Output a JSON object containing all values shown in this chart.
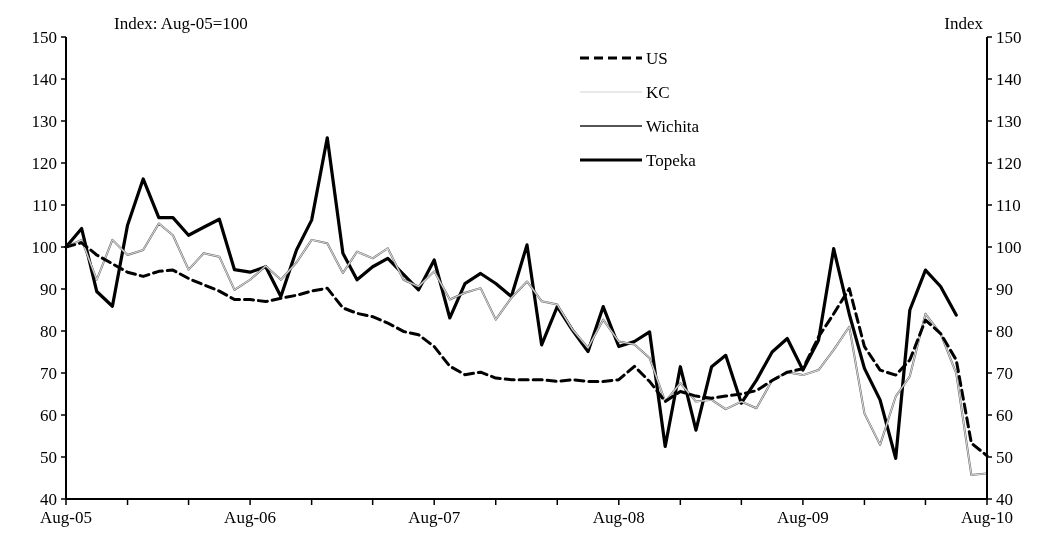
{
  "chart_data": {
    "type": "line",
    "ylabel": "Index: Aug-05=100",
    "y2label": "Index",
    "x": [
      "2005-08",
      "2005-09",
      "2005-10",
      "2005-11",
      "2005-12",
      "2006-01",
      "2006-02",
      "2006-03",
      "2006-04",
      "2006-05",
      "2006-06",
      "2006-07",
      "2006-08",
      "2006-09",
      "2006-10",
      "2006-11",
      "2006-12",
      "2007-01",
      "2007-02",
      "2007-03",
      "2007-04",
      "2007-05",
      "2007-06",
      "2007-07",
      "2007-08",
      "2007-09",
      "2007-10",
      "2007-11",
      "2007-12",
      "2008-01",
      "2008-02",
      "2008-03",
      "2008-04",
      "2008-05",
      "2008-06",
      "2008-07",
      "2008-08",
      "2008-09",
      "2008-10",
      "2008-11",
      "2008-12",
      "2009-01",
      "2009-02",
      "2009-03",
      "2009-04",
      "2009-05",
      "2009-06",
      "2009-07",
      "2009-08",
      "2009-09",
      "2009-10",
      "2009-11",
      "2009-12",
      "2010-01",
      "2010-02",
      "2010-03",
      "2010-04",
      "2010-05",
      "2010-06",
      "2010-07",
      "2010-08"
    ],
    "series": [
      {
        "name": "US",
        "color": "#000000",
        "line_style": "dashed",
        "values": [
          100,
          101,
          98.1,
          96,
          94,
          93,
          94.2,
          94.5,
          92.5,
          91,
          89.5,
          87.5,
          87.5,
          87,
          87.8,
          88.5,
          89.5,
          90.2,
          85.5,
          84.2,
          83.4,
          81.9,
          79.9,
          79.1,
          76.3,
          71.6,
          69.6,
          70.2,
          68.8,
          68.4,
          68.4,
          68.4,
          68,
          68.4,
          68,
          68,
          68.4,
          71.6,
          68,
          63.2,
          65.6,
          64.5,
          64,
          64.5,
          65,
          65.8,
          68.2,
          70.2,
          71,
          78.6,
          84.1,
          90.1,
          76.3,
          70.7,
          69.5,
          73.1,
          82.6,
          79.4,
          73.1,
          53.3,
          50.3
        ]
      },
      {
        "name": "KC",
        "color": "#d4d4d4",
        "line_style": "solid",
        "values": [
          100,
          101.7,
          92.2,
          101.7,
          98.1,
          99.3,
          105.6,
          102.8,
          94.6,
          98.5,
          97.7,
          89.8,
          92.2,
          95.5,
          92.2,
          96.3,
          101.7,
          100.9,
          93.8,
          98.9,
          97.3,
          99.7,
          92.2,
          90.6,
          94.2,
          87.5,
          89.1,
          90.2,
          82.7,
          87.9,
          91.8,
          87.1,
          86.3,
          80.4,
          76,
          82.7,
          77.5,
          76.8,
          73.6,
          63.2,
          67.6,
          63.2,
          63.6,
          61.4,
          63.2,
          61.6,
          68.3,
          70.2,
          69.5,
          70.7,
          75.5,
          81,
          60.4,
          52.9,
          64.4,
          69.2,
          84.1,
          79.4,
          69.9,
          45.7,
          46.1
        ]
      },
      {
        "name": "Wichita",
        "color": "#555555",
        "line_style": "solid",
        "values": [
          100,
          101.7,
          92.2,
          101.7,
          98.1,
          99.3,
          105.6,
          102.8,
          94.6,
          98.5,
          97.7,
          89.8,
          92.2,
          95.5,
          92.2,
          96.3,
          101.7,
          100.9,
          93.8,
          98.9,
          97.3,
          99.7,
          92.2,
          90.6,
          94.2,
          87.5,
          89.1,
          90.2,
          82.7,
          87.9,
          91.8,
          87.1,
          86.3,
          80.4,
          76,
          82.7,
          77.5,
          76.8,
          73.6,
          63.2,
          67.6,
          63.2,
          63.6,
          61.4,
          63.2,
          61.6,
          68.3,
          70.2,
          69.5,
          70.7,
          75.5,
          81,
          60.4,
          52.9,
          64.4,
          69.2,
          84.1,
          79.4,
          69.9,
          45.7,
          46.1
        ]
      },
      {
        "name": "Topeka",
        "color": "#000000",
        "line_style": "solid",
        "values": [
          100,
          104.4,
          89.4,
          85.9,
          105.2,
          116.2,
          107,
          107,
          102.8,
          104.7,
          106.6,
          94.6,
          94,
          95.3,
          88.2,
          99.3,
          106.4,
          126,
          98.5,
          92.2,
          95.3,
          97.3,
          93.5,
          89.8,
          96.9,
          83.1,
          91.3,
          93.7,
          91.3,
          88.2,
          100.5,
          76.7,
          85.8,
          80.2,
          75.1,
          85.8,
          76.3,
          77.5,
          79.8,
          52.5,
          71.5,
          56.4,
          71.5,
          74.2,
          62.8,
          68.3,
          75,
          78.2,
          70.7,
          77.8,
          99.6,
          84,
          71.1,
          63.6,
          49.7,
          85,
          94.5,
          90.6,
          83.8,
          null,
          null
        ]
      }
    ],
    "xlim": [
      "2005-08",
      "2010-08"
    ],
    "xticks": [
      {
        "value": "2005-08",
        "label": "Aug-05"
      },
      {
        "value": "2005-12",
        "label": null
      },
      {
        "value": "2006-04",
        "label": null
      },
      {
        "value": "2006-08",
        "label": "Aug-06"
      },
      {
        "value": "2006-12",
        "label": null
      },
      {
        "value": "2007-04",
        "label": null
      },
      {
        "value": "2007-08",
        "label": "Aug-07"
      },
      {
        "value": "2007-12",
        "label": null
      },
      {
        "value": "2008-04",
        "label": null
      },
      {
        "value": "2008-08",
        "label": "Aug-08"
      },
      {
        "value": "2008-12",
        "label": null
      },
      {
        "value": "2009-04",
        "label": null
      },
      {
        "value": "2009-08",
        "label": "Aug-09"
      },
      {
        "value": "2009-12",
        "label": null
      },
      {
        "value": "2010-04",
        "label": null
      },
      {
        "value": "2010-08",
        "label": "Aug-10"
      }
    ],
    "ylim": [
      40,
      150
    ],
    "yticks": [
      40,
      50,
      60,
      70,
      80,
      90,
      100,
      110,
      120,
      130,
      140,
      150
    ],
    "y2lim": [
      40,
      150
    ],
    "y2ticks": [
      40,
      50,
      60,
      70,
      80,
      90,
      100,
      110,
      120,
      130,
      140,
      150
    ],
    "legend": "top",
    "grid": false,
    "marker": "none"
  }
}
